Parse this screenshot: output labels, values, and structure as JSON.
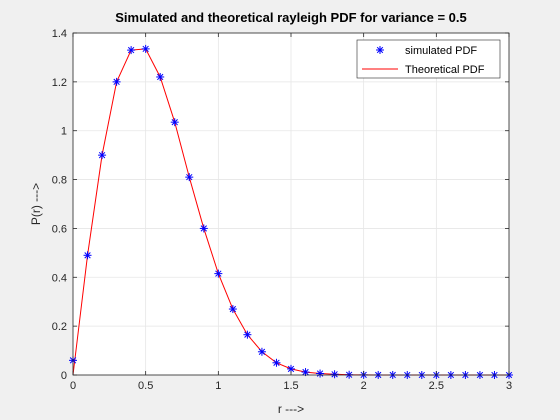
{
  "chart_data": {
    "type": "line",
    "title": "Simulated and theoretical rayleigh PDF for variance = 0.5",
    "xlabel": "r --->",
    "ylabel": "P(r) --->",
    "xlim": [
      0,
      3
    ],
    "ylim": [
      0,
      1.4
    ],
    "xticks": [
      "0",
      "0.5",
      "1",
      "1.5",
      "2",
      "2.5",
      "3"
    ],
    "yticks": [
      "0",
      "0.2",
      "0.4",
      "0.6",
      "0.8",
      "1",
      "1.2",
      "1.4"
    ],
    "grid": true,
    "legend_position": "top-right",
    "series": [
      {
        "name": "simulated PDF",
        "marker": "asterisk",
        "color": "#0000ff",
        "x": [
          0,
          0.1,
          0.2,
          0.3,
          0.4,
          0.5,
          0.6,
          0.7,
          0.8,
          0.9,
          1.0,
          1.1,
          1.2,
          1.3,
          1.4,
          1.5,
          1.6,
          1.7,
          1.8,
          1.9,
          2.0,
          2.1,
          2.2,
          2.3,
          2.4,
          2.5,
          2.6,
          2.7,
          2.8,
          2.9,
          3.0
        ],
        "y": [
          0.06,
          0.49,
          0.9,
          1.2,
          1.33,
          1.335,
          1.22,
          1.035,
          0.81,
          0.6,
          0.415,
          0.27,
          0.165,
          0.095,
          0.05,
          0.025,
          0.012,
          0.006,
          0.003,
          0.001,
          0.0005,
          0.0002,
          0.0001,
          0,
          0,
          0,
          0,
          0,
          0,
          0,
          0
        ]
      },
      {
        "name": "Theoretical PDF",
        "line": "solid",
        "color": "#ff0000",
        "x": [
          0,
          0.1,
          0.2,
          0.3,
          0.4,
          0.5,
          0.6,
          0.7,
          0.8,
          0.9,
          1.0,
          1.1,
          1.2,
          1.3,
          1.4,
          1.5,
          1.6,
          1.7,
          1.8,
          1.9,
          2.0,
          2.1,
          2.2,
          2.3,
          2.4,
          2.5,
          2.6,
          2.7,
          2.8,
          2.9,
          3.0
        ],
        "y": [
          0.0,
          0.49,
          0.9,
          1.2,
          1.33,
          1.335,
          1.22,
          1.035,
          0.81,
          0.6,
          0.415,
          0.27,
          0.165,
          0.095,
          0.05,
          0.025,
          0.012,
          0.006,
          0.003,
          0.001,
          0.0005,
          0.0002,
          0.0001,
          0,
          0,
          0,
          0,
          0,
          0,
          0,
          0
        ]
      }
    ]
  }
}
